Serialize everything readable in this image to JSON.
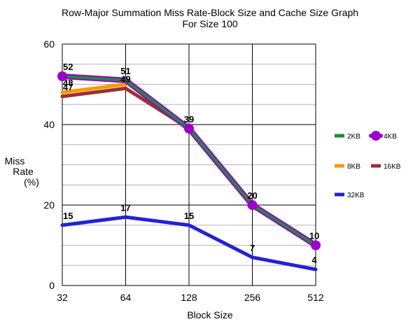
{
  "chart_data": {
    "type": "line",
    "title": "Row-Major Summation Miss Rate-Block Size and Cache Size Graph",
    "subtitle": "For Size 100",
    "xlabel": "Block Size",
    "ylabel_lines": [
      "Miss",
      "Rate",
      "(%)"
    ],
    "categories": [
      "32",
      "64",
      "128",
      "256",
      "512"
    ],
    "ylim": [
      0,
      60
    ],
    "yticks": [
      "0",
      "20",
      "40",
      "60"
    ],
    "grid": true,
    "legend_position": "right",
    "series": [
      {
        "name": "2KB",
        "color": "#1e8a3c",
        "values": [
          52,
          51,
          39,
          20,
          10
        ],
        "marker": "none"
      },
      {
        "name": "4KB",
        "color": "#9a00c8",
        "values": [
          52,
          51,
          39,
          20,
          10
        ],
        "marker": "circle"
      },
      {
        "name": "8KB",
        "color": "#ff9900",
        "values": [
          48,
          50,
          null,
          null,
          null
        ],
        "marker": "none"
      },
      {
        "name": "16KB",
        "color": "#9a3232",
        "values": [
          47,
          49,
          39,
          20,
          10
        ],
        "marker": "none"
      },
      {
        "name": "32KB",
        "color": "#2222d6",
        "values": [
          15,
          17,
          15,
          7,
          4
        ],
        "marker": "none"
      }
    ],
    "data_labels": [
      {
        "series": 1,
        "index": 0,
        "text": "52"
      },
      {
        "series": 2,
        "index": 0,
        "text": "48"
      },
      {
        "series": 3,
        "index": 0,
        "text": "47"
      },
      {
        "series": 1,
        "index": 1,
        "text": "51"
      },
      {
        "series": 3,
        "index": 1,
        "text": "49"
      },
      {
        "series": 1,
        "index": 2,
        "text": "39"
      },
      {
        "series": 1,
        "index": 3,
        "text": "20"
      },
      {
        "series": 1,
        "index": 4,
        "text": "10"
      },
      {
        "series": 4,
        "index": 0,
        "text": "15"
      },
      {
        "series": 4,
        "index": 1,
        "text": "17"
      },
      {
        "series": 4,
        "index": 2,
        "text": "15"
      },
      {
        "series": 4,
        "index": 3,
        "text": "7"
      },
      {
        "series": 4,
        "index": 4,
        "text": "4"
      }
    ]
  }
}
